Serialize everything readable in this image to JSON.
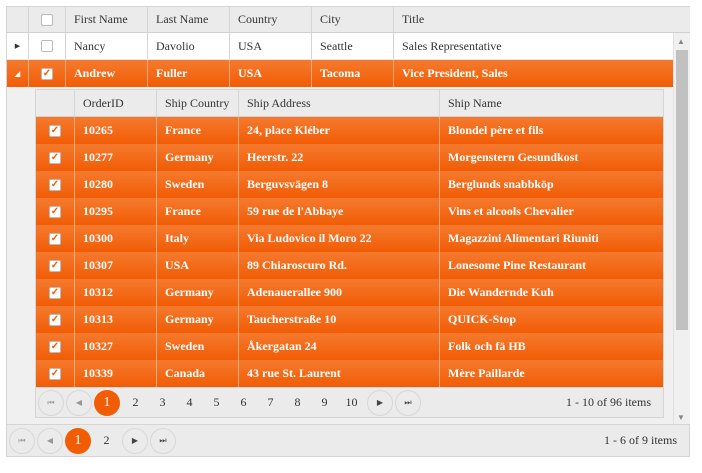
{
  "columns": [
    "First Name",
    "Last Name",
    "Country",
    "City",
    "Title"
  ],
  "employees": [
    {
      "first": "Nancy",
      "last": "Davolio",
      "country": "USA",
      "city": "Seattle",
      "title": "Sales Representative",
      "expanded": false,
      "selected": false
    },
    {
      "first": "Andrew",
      "last": "Fuller",
      "country": "USA",
      "city": "Tacoma",
      "title": "Vice President, Sales",
      "expanded": true,
      "selected": true
    }
  ],
  "detail": {
    "columns": [
      "OrderID",
      "Ship Country",
      "Ship Address",
      "Ship Name"
    ],
    "rows": [
      [
        "10265",
        "France",
        "24, place Kléber",
        "Blondel père et fils"
      ],
      [
        "10277",
        "Germany",
        "Heerstr. 22",
        "Morgenstern Gesundkost"
      ],
      [
        "10280",
        "Sweden",
        "Berguvsvägen 8",
        "Berglunds snabbköp"
      ],
      [
        "10295",
        "France",
        "59 rue de l'Abbaye",
        "Vins et alcools Chevalier"
      ],
      [
        "10300",
        "Italy",
        "Via Ludovico il Moro 22",
        "Magazzini Alimentari Riuniti"
      ],
      [
        "10307",
        "USA",
        "89 Chiaroscuro Rd.",
        "Lonesome Pine Restaurant"
      ],
      [
        "10312",
        "Germany",
        "Adenauerallee 900",
        "Die Wandernde Kuh"
      ],
      [
        "10313",
        "Germany",
        "Taucherstraße 10",
        "QUICK-Stop"
      ],
      [
        "10327",
        "Sweden",
        "Åkergatan 24",
        "Folk och fä HB"
      ],
      [
        "10339",
        "Canada",
        "43 rue St. Laurent",
        "Mère Paillarde"
      ]
    ],
    "pager": {
      "pages": [
        "1",
        "2",
        "3",
        "4",
        "5",
        "6",
        "7",
        "8",
        "9",
        "10"
      ],
      "current": "1",
      "info": "1 - 10 of 96 items"
    }
  },
  "pager": {
    "pages": [
      "1",
      "2"
    ],
    "current": "1",
    "info": "1 - 6 of 9 items"
  },
  "colors": {
    "accent": "#f25c05"
  }
}
